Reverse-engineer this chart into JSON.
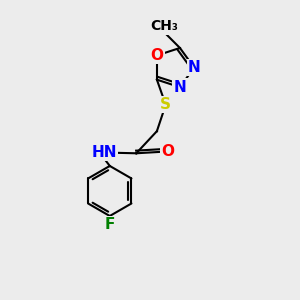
{
  "bg_color": "#ececec",
  "atom_colors": {
    "N": "#0000ff",
    "O": "#ff0000",
    "S": "#cccc00",
    "F": "#008000",
    "C": "#000000",
    "H": "#4a9a9a"
  },
  "font_size": 11,
  "line_width": 1.5,
  "figsize": [
    3.0,
    3.0
  ],
  "dpi": 100
}
